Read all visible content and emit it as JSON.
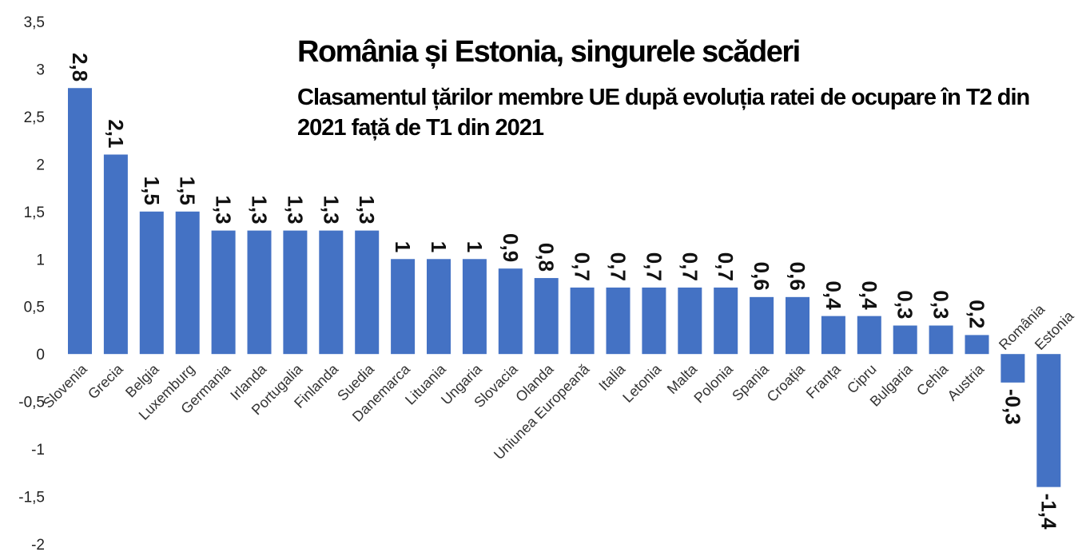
{
  "chart_data": {
    "type": "bar",
    "title": "România și Estonia, singurele scăderi",
    "subtitle": "Clasamentul țărilor membre UE după evoluția ratei de ocupare în T2 din 2021 față de T1 din 2021",
    "categories": [
      "Slovenia",
      "Grecia",
      "Belgia",
      "Luxemburg",
      "Germania",
      "Irlanda",
      "Portugalia",
      "Finlanda",
      "Suedia",
      "Danemarca",
      "Lituania",
      "Ungaria",
      "Slovacia",
      "Olanda",
      "Uniunea Europeană",
      "Italia",
      "Letonia",
      "Malta",
      "Polonia",
      "Spania",
      "Croația",
      "Franța",
      "Cipru",
      "Bulgaria",
      "Cehia",
      "Austria",
      "România",
      "Estonia"
    ],
    "values": [
      2.8,
      2.1,
      1.5,
      1.5,
      1.3,
      1.3,
      1.3,
      1.3,
      1.3,
      1,
      1,
      1,
      0.9,
      0.8,
      0.7,
      0.7,
      0.7,
      0.7,
      0.7,
      0.6,
      0.6,
      0.4,
      0.4,
      0.3,
      0.3,
      0.2,
      -0.3,
      -1.4
    ],
    "data_labels": [
      "2,8",
      "2,1",
      "1,5",
      "1,5",
      "1,3",
      "1,3",
      "1,3",
      "1,3",
      "1,3",
      "1",
      "1",
      "1",
      "0,9",
      "0,8",
      "0,7",
      "0,7",
      "0,7",
      "0,7",
      "0,7",
      "0,6",
      "0,6",
      "0,4",
      "0,4",
      "0,3",
      "0,3",
      "0,2",
      "-0,3",
      "-1,4"
    ],
    "yticks": [
      "3,5",
      "3",
      "2,5",
      "2",
      "1,5",
      "1",
      "0,5",
      "0",
      "-0,5",
      "-1",
      "-1,5",
      "-2"
    ],
    "ylim": [
      -2,
      3.5
    ],
    "xlabel": "",
    "ylabel": "",
    "bar_color": "#4472C4",
    "grid": false,
    "legend": "none"
  }
}
